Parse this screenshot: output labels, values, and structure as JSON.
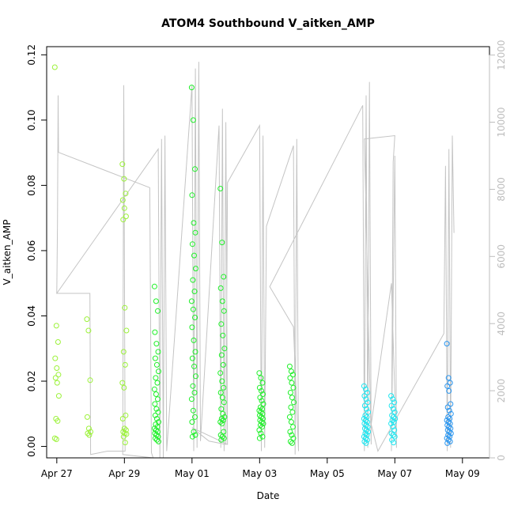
{
  "chart_data": {
    "type": "scatter",
    "title": "ATOM4 Southbound V_aitken_AMP",
    "xlabel": "Date",
    "ylabel": "V_aitken_AMP",
    "x_ticks": [
      "Apr 27",
      "Apr 29",
      "May 01",
      "May 03",
      "May 05",
      "May 07",
      "May 09"
    ],
    "x_tick_days": [
      0,
      2,
      4,
      6,
      8,
      10,
      12
    ],
    "y_ticks": [
      "0.00",
      "0.02",
      "0.04",
      "0.06",
      "0.08",
      "0.10",
      "0.12"
    ],
    "y_tick_values": [
      0,
      0.02,
      0.04,
      0.06,
      0.08,
      0.1,
      0.12
    ],
    "y2_ticks": [
      "0",
      "2000",
      "4000",
      "6000",
      "8000",
      "10000",
      "12000"
    ],
    "y2_tick_values": [
      0,
      2000,
      4000,
      6000,
      8000,
      10000,
      12000
    ],
    "xlim": [
      -0.3,
      12.8
    ],
    "ylim": [
      -0.0035,
      0.1225
    ],
    "y2lim": [
      -0.0035,
      12250
    ],
    "colors": {
      "early": "#9cf23a",
      "mid": "#20f02a",
      "late": "#20e6f0",
      "latest": "#2a96f0",
      "altitude": "#c4c4c4"
    },
    "groups": [
      {
        "day": 0.0,
        "values": [
          0.1162,
          0.037,
          0.032,
          0.027,
          0.024,
          0.022,
          0.021,
          0.0195,
          0.0155,
          0.0085,
          0.0078,
          0.0025,
          0.0022
        ]
      },
      {
        "day": 0.95,
        "values": [
          0.039,
          0.0355,
          0.0203,
          0.009,
          0.0055,
          0.0045,
          0.004,
          0.0035
        ]
      },
      {
        "day": 2.0,
        "values": [
          0.0865,
          0.082,
          0.0775,
          0.0755,
          0.073,
          0.0705,
          0.0695,
          0.0425,
          0.0355,
          0.029,
          0.025,
          0.0195,
          0.018,
          0.0095,
          0.0085,
          0.0055,
          0.005,
          0.0045,
          0.004,
          0.0038,
          0.003,
          0.0012
        ]
      },
      {
        "day": 2.95,
        "values": [
          0.049,
          0.0445,
          0.0415,
          0.035,
          0.0315,
          0.029,
          0.027,
          0.025,
          0.023,
          0.021,
          0.0195,
          0.0175,
          0.016,
          0.0145,
          0.013,
          0.0115,
          0.0105,
          0.0095,
          0.0085,
          0.0075,
          0.0068,
          0.006,
          0.0055,
          0.005,
          0.0045,
          0.004,
          0.0035,
          0.003,
          0.0025,
          0.002,
          0.0015
        ]
      },
      {
        "day": 4.05,
        "values": [
          0.11,
          0.1,
          0.085,
          0.077,
          0.0685,
          0.0655,
          0.062,
          0.0585,
          0.0545,
          0.051,
          0.0475,
          0.0445,
          0.042,
          0.0395,
          0.0365,
          0.0325,
          0.029,
          0.027,
          0.0245,
          0.0215,
          0.0185,
          0.0165,
          0.0145,
          0.011,
          0.009,
          0.0075,
          0.0045,
          0.0035,
          0.003
        ]
      },
      {
        "day": 4.9,
        "values": [
          0.079,
          0.0625,
          0.052,
          0.0485,
          0.0445,
          0.0415,
          0.0375,
          0.034,
          0.03,
          0.028,
          0.025,
          0.0225,
          0.02,
          0.018,
          0.0165,
          0.015,
          0.0135,
          0.0115,
          0.01,
          0.009,
          0.0085,
          0.008,
          0.0075,
          0.007,
          0.0045,
          0.0035,
          0.003,
          0.0025,
          0.002
        ]
      },
      {
        "day": 6.05,
        "values": [
          0.0225,
          0.021,
          0.0195,
          0.018,
          0.017,
          0.016,
          0.015,
          0.014,
          0.013,
          0.012,
          0.0115,
          0.011,
          0.0105,
          0.01,
          0.0095,
          0.009,
          0.0085,
          0.008,
          0.0075,
          0.007,
          0.0065,
          0.006,
          0.005,
          0.004,
          0.003,
          0.0025
        ]
      },
      {
        "day": 6.95,
        "values": [
          0.0245,
          0.023,
          0.022,
          0.021,
          0.0195,
          0.018,
          0.0165,
          0.015,
          0.0135,
          0.012,
          0.0105,
          0.009,
          0.0075,
          0.006,
          0.0045,
          0.0035,
          0.0025,
          0.0015,
          0.001
        ]
      },
      {
        "day": 9.15,
        "values": [
          0.0185,
          0.0175,
          0.0165,
          0.0155,
          0.0145,
          0.0135,
          0.0125,
          0.0115,
          0.0105,
          0.0095,
          0.009,
          0.0085,
          0.008,
          0.0075,
          0.007,
          0.0065,
          0.006,
          0.0055,
          0.005,
          0.0045,
          0.004,
          0.0035,
          0.003,
          0.0025,
          0.002,
          0.0015,
          0.001
        ]
      },
      {
        "day": 9.95,
        "values": [
          0.0155,
          0.0145,
          0.0135,
          0.0125,
          0.0115,
          0.0105,
          0.0095,
          0.009,
          0.0085,
          0.008,
          0.0075,
          0.007,
          0.006,
          0.005,
          0.004,
          0.0035,
          0.003,
          0.002,
          0.0012
        ]
      },
      {
        "day": 11.6,
        "values": [
          0.0315,
          0.021,
          0.0195,
          0.0185,
          0.017,
          0.013,
          0.012,
          0.011,
          0.01,
          0.009,
          0.0085,
          0.008,
          0.0075,
          0.007,
          0.0065,
          0.006,
          0.0055,
          0.005,
          0.0045,
          0.004,
          0.0035,
          0.003,
          0.0025,
          0.002,
          0.0015,
          0.001
        ]
      }
    ],
    "altitude_path": [
      [
        0.0,
        4900
      ],
      [
        0.02,
        7000
      ],
      [
        0.04,
        10800
      ],
      [
        0.05,
        9100
      ],
      [
        2.75,
        8050
      ],
      [
        2.8,
        150
      ],
      [
        2.85,
        0
      ],
      [
        1.95,
        100
      ],
      [
        1.98,
        11100
      ],
      [
        2.02,
        200
      ],
      [
        1.5,
        200
      ],
      [
        1.0,
        100
      ],
      [
        0.98,
        4900
      ],
      [
        0.0,
        4900
      ],
      [
        3.0,
        9200
      ],
      [
        3.05,
        0
      ],
      [
        3.1,
        9500
      ],
      [
        3.15,
        0
      ],
      [
        3.2,
        9600
      ],
      [
        3.25,
        200
      ],
      [
        4.0,
        11100
      ],
      [
        4.05,
        200
      ],
      [
        4.1,
        11600
      ],
      [
        4.15,
        300
      ],
      [
        4.2,
        11800
      ],
      [
        4.25,
        500
      ],
      [
        4.8,
        9900
      ],
      [
        4.85,
        300
      ],
      [
        4.9,
        10400
      ],
      [
        4.95,
        200
      ],
      [
        5.0,
        10000
      ],
      [
        5.05,
        400
      ],
      [
        4.0,
        900
      ],
      [
        4.5,
        500
      ],
      [
        5.0,
        400
      ],
      [
        5.05,
        8200
      ],
      [
        6.0,
        9900
      ],
      [
        6.05,
        200
      ],
      [
        6.1,
        9600
      ],
      [
        6.15,
        300
      ],
      [
        6.2,
        6900
      ],
      [
        7.0,
        9300
      ],
      [
        7.05,
        100
      ],
      [
        7.1,
        9500
      ],
      [
        7.15,
        200
      ],
      [
        7.0,
        3900
      ],
      [
        6.3,
        5100
      ],
      [
        9.05,
        10500
      ],
      [
        9.1,
        200
      ],
      [
        9.15,
        10800
      ],
      [
        9.2,
        300
      ],
      [
        9.25,
        11200
      ],
      [
        9.3,
        400
      ],
      [
        9.1,
        9500
      ],
      [
        10.0,
        9600
      ],
      [
        9.95,
        8800
      ],
      [
        9.9,
        200
      ],
      [
        10.0,
        9000
      ],
      [
        10.05,
        300
      ],
      [
        9.9,
        5200
      ],
      [
        9.3,
        1000
      ],
      [
        9.5,
        200
      ],
      [
        11.45,
        3700
      ],
      [
        11.5,
        8700
      ],
      [
        11.55,
        200
      ],
      [
        11.6,
        9200
      ],
      [
        11.65,
        300
      ],
      [
        11.7,
        9600
      ],
      [
        11.75,
        6700
      ]
    ]
  }
}
